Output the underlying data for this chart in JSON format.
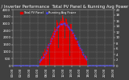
{
  "title": "Solar PV / Inverter Performance  Total PV Panel & Running Avg Power Output",
  "bg_color": "#404040",
  "plot_bg": "#404040",
  "bar_color": "#dd0000",
  "avg_color": "#4444ff",
  "num_points": 288,
  "peak_watt": 3400,
  "ylim_left": [
    0,
    4000
  ],
  "ylim_right": [
    0,
    20
  ],
  "grid_color": "#aaaaaa",
  "title_color": "#ffffff",
  "title_fontsize": 3.8,
  "label_fontsize": 2.8,
  "legend_fontsize": 2.5,
  "legend": [
    "Total PV Panel",
    "Running Avg Power"
  ],
  "legend_colors": [
    "#dd0000",
    "#4444ff"
  ],
  "yticks_left": [
    0,
    500,
    1000,
    1500,
    2000,
    2500,
    3000,
    3500,
    4000
  ],
  "yticks_right": [
    0,
    2,
    4,
    6,
    8,
    10,
    12,
    14,
    16,
    18,
    20
  ],
  "seed": 42
}
